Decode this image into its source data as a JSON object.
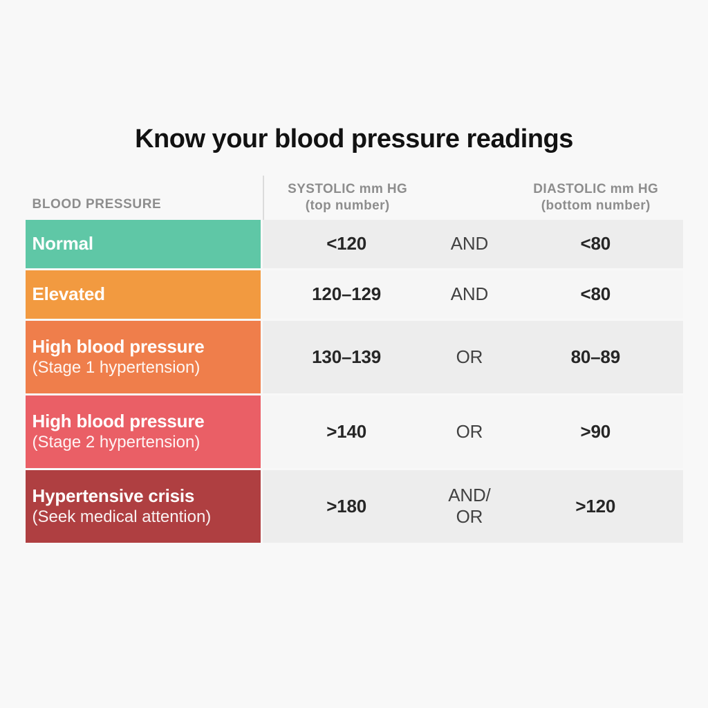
{
  "page": {
    "title": "Know your blood pressure readings",
    "background_color": "#f8f8f8"
  },
  "table": {
    "header": {
      "category": "BLOOD PRESSURE",
      "systolic_line1": "SYSTOLIC mm HG",
      "systolic_line2": "(top number)",
      "diastolic_line1": "DIASTOLIC mm HG",
      "diastolic_line2": "(bottom number)"
    },
    "rows": [
      {
        "label": "Normal",
        "sublabel": "",
        "color": "#5fc7a6",
        "systolic": "<120",
        "conjunction_lines": [
          "AND"
        ],
        "diastolic": "<80"
      },
      {
        "label": "Elevated",
        "sublabel": "",
        "color": "#f29a40",
        "systolic": "120–129",
        "conjunction_lines": [
          "AND"
        ],
        "diastolic": "<80"
      },
      {
        "label": "High blood pressure",
        "sublabel": "(Stage 1 hypertension)",
        "color": "#ef7e4b",
        "systolic": "130–139",
        "conjunction_lines": [
          "OR"
        ],
        "diastolic": "80–89"
      },
      {
        "label": "High blood pressure",
        "sublabel": "(Stage 2 hypertension)",
        "color": "#ea5f66",
        "systolic": ">140",
        "conjunction_lines": [
          "OR"
        ],
        "diastolic": ">90"
      },
      {
        "label": "Hypertensive crisis",
        "sublabel": "(Seek medical attention)",
        "color": "#af3f41",
        "systolic": ">180",
        "conjunction_lines": [
          "AND/",
          "OR"
        ],
        "diastolic": ">120"
      }
    ]
  },
  "colors": {
    "title_text": "#121212",
    "header_text": "#8d8d8d",
    "divider": "#dcdcdc",
    "value_row_bg_dark": "#ededed",
    "value_row_bg_light": "#f6f6f6",
    "value_text": "#262626"
  },
  "chart_data": {
    "type": "table",
    "title": "Know your blood pressure readings",
    "columns": [
      "BLOOD PRESSURE",
      "SYSTOLIC mm HG (top number)",
      "conjunction",
      "DIASTOLIC mm HG (bottom number)"
    ],
    "rows": [
      [
        "Normal",
        "<120",
        "AND",
        "<80"
      ],
      [
        "Elevated",
        "120–129",
        "AND",
        "<80"
      ],
      [
        "High blood pressure (Stage 1 hypertension)",
        "130–139",
        "OR",
        "80–89"
      ],
      [
        "High blood pressure (Stage 2 hypertension)",
        ">140",
        "OR",
        ">90"
      ],
      [
        "Hypertensive crisis (Seek medical attention)",
        ">180",
        "AND/OR",
        ">120"
      ]
    ],
    "row_colors": [
      "#5fc7a6",
      "#f29a40",
      "#ef7e4b",
      "#ea5f66",
      "#af3f41"
    ],
    "legend_position": "none",
    "grid": false
  }
}
